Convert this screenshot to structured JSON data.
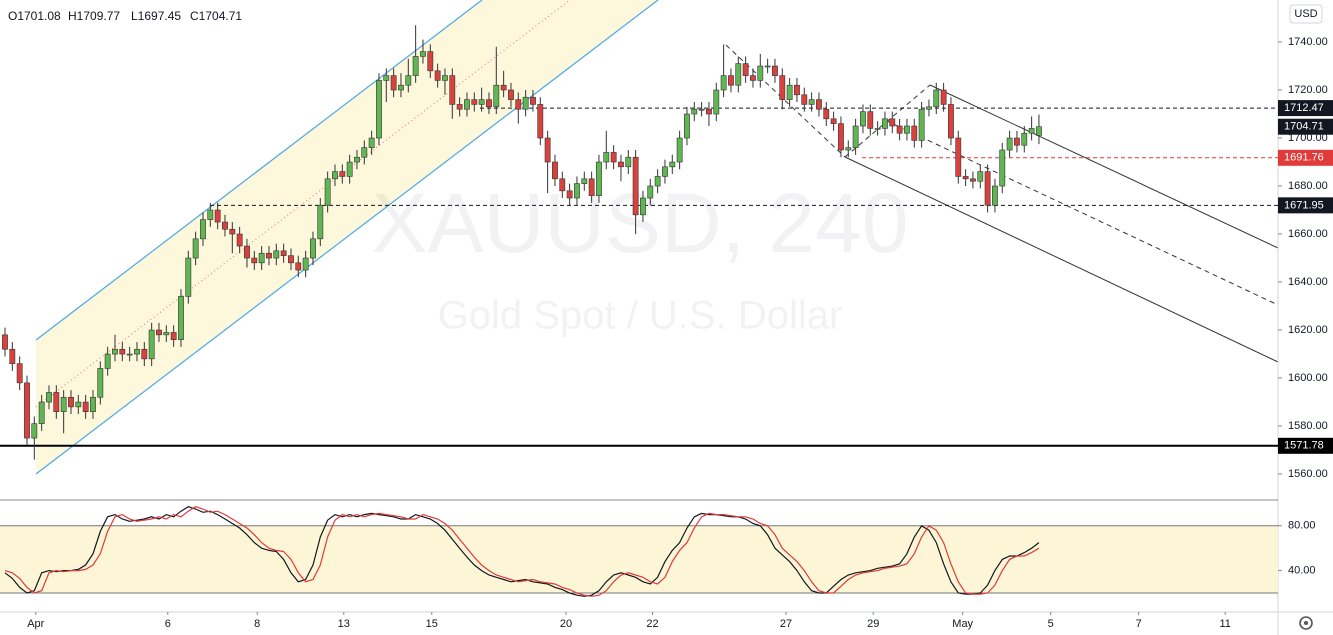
{
  "header": {
    "ohlc": [
      "O1701.08",
      "H1709.77",
      "L1697.45",
      "C1704.71"
    ]
  },
  "chart_data": [
    {
      "type": "candlestick",
      "watermark": "XAUUSD, 240",
      "watermark_subtitle": "Gold Spot / U.S. Dollar",
      "currency": "USD",
      "colors": {
        "up": "#5fb653",
        "down": "#d9413e"
      },
      "open": [
        1618,
        1612,
        1606,
        1598,
        1575,
        1581,
        1590,
        1594,
        1586,
        1592,
        1588,
        1590,
        1586,
        1592,
        1604,
        1610,
        1612,
        1610,
        1610,
        1612,
        1608,
        1620,
        1618,
        1619,
        1616,
        1634,
        1650,
        1658,
        1666,
        1670,
        1665,
        1662,
        1660,
        1655,
        1650,
        1648,
        1652,
        1650,
        1653,
        1651,
        1648,
        1645,
        1650,
        1658,
        1672,
        1683,
        1686,
        1684,
        1690,
        1692,
        1696,
        1700,
        1724,
        1726,
        1720,
        1722,
        1726,
        1734,
        1736,
        1728,
        1724,
        1726,
        1714,
        1712,
        1716,
        1714,
        1716,
        1713,
        1722,
        1720,
        1716,
        1712,
        1717,
        1714,
        1700,
        1690,
        1683,
        1678,
        1675,
        1681,
        1683,
        1676,
        1690,
        1694,
        1690,
        1688,
        1692,
        1668,
        1675,
        1680,
        1684,
        1688,
        1690,
        1700,
        1710,
        1712,
        1712,
        1710,
        1720,
        1726,
        1722,
        1731,
        1726,
        1724,
        1730,
        1730,
        1726,
        1716,
        1722,
        1718,
        1714,
        1716,
        1712,
        1708,
        1706,
        1695,
        1696,
        1705,
        1711,
        1704,
        1704,
        1708,
        1705,
        1702,
        1705,
        1699,
        1712,
        1713,
        1720,
        1714,
        1700,
        1684,
        1683,
        1682,
        1686,
        1672,
        1680,
        1695,
        1700,
        1697,
        1702,
        1701.08
      ],
      "high": [
        1621,
        1615,
        1609,
        1601,
        1584,
        1593,
        1597,
        1597,
        1595,
        1595,
        1593,
        1593,
        1595,
        1607,
        1613,
        1618,
        1615,
        1613,
        1615,
        1615,
        1623,
        1623,
        1622,
        1622,
        1637,
        1653,
        1661,
        1669,
        1673,
        1673,
        1668,
        1665,
        1663,
        1658,
        1653,
        1655,
        1655,
        1656,
        1656,
        1654,
        1651,
        1653,
        1661,
        1675,
        1686,
        1689,
        1689,
        1693,
        1695,
        1699,
        1703,
        1727,
        1729,
        1729,
        1727,
        1733,
        1747,
        1741,
        1739,
        1731,
        1729,
        1729,
        1717,
        1719,
        1719,
        1721,
        1719,
        1738,
        1728,
        1723,
        1719,
        1720,
        1720,
        1717,
        1703,
        1693,
        1686,
        1681,
        1684,
        1686,
        1686,
        1693,
        1703,
        1697,
        1693,
        1695,
        1695,
        1678,
        1683,
        1687,
        1691,
        1693,
        1703,
        1713,
        1715,
        1715,
        1715,
        1723,
        1739,
        1729,
        1734,
        1734,
        1729,
        1735,
        1733,
        1733,
        1729,
        1725,
        1725,
        1721,
        1719,
        1719,
        1715,
        1711,
        1709,
        1699,
        1708,
        1714,
        1714,
        1707,
        1711,
        1711,
        1708,
        1708,
        1708,
        1715,
        1716,
        1723,
        1723,
        1717,
        1703,
        1687,
        1686,
        1689,
        1689,
        1683,
        1698,
        1703,
        1703,
        1705,
        1709,
        1709.77
      ],
      "low": [
        1609,
        1603,
        1595,
        1572,
        1566,
        1578,
        1587,
        1583,
        1577,
        1585,
        1585,
        1583,
        1583,
        1589,
        1601,
        1607,
        1607,
        1607,
        1607,
        1605,
        1605,
        1615,
        1615,
        1613,
        1613,
        1631,
        1647,
        1655,
        1663,
        1662,
        1659,
        1652,
        1652,
        1646,
        1645,
        1645,
        1647,
        1647,
        1648,
        1645,
        1642,
        1642,
        1647,
        1655,
        1669,
        1680,
        1681,
        1681,
        1687,
        1689,
        1693,
        1697,
        1715,
        1717,
        1717,
        1719,
        1723,
        1731,
        1725,
        1721,
        1718,
        1708,
        1709,
        1709,
        1711,
        1711,
        1710,
        1710,
        1717,
        1713,
        1706,
        1709,
        1711,
        1697,
        1677,
        1680,
        1675,
        1672,
        1672,
        1678,
        1673,
        1673,
        1687,
        1687,
        1682,
        1685,
        1660,
        1665,
        1672,
        1677,
        1681,
        1685,
        1687,
        1697,
        1707,
        1709,
        1705,
        1707,
        1717,
        1719,
        1719,
        1723,
        1721,
        1721,
        1727,
        1723,
        1712,
        1713,
        1715,
        1711,
        1711,
        1709,
        1705,
        1703,
        1692,
        1692,
        1693,
        1702,
        1701,
        1701,
        1701,
        1702,
        1699,
        1699,
        1696,
        1696,
        1709,
        1710,
        1711,
        1697,
        1681,
        1680,
        1679,
        1679,
        1669,
        1669,
        1677,
        1692,
        1694,
        1694,
        1699,
        1697.45
      ],
      "close": [
        1612,
        1606,
        1598,
        1575,
        1581,
        1590,
        1594,
        1586,
        1592,
        1588,
        1590,
        1586,
        1592,
        1604,
        1610,
        1612,
        1610,
        1610,
        1612,
        1608,
        1620,
        1618,
        1619,
        1616,
        1634,
        1650,
        1658,
        1666,
        1670,
        1665,
        1662,
        1660,
        1655,
        1650,
        1648,
        1652,
        1650,
        1653,
        1651,
        1648,
        1645,
        1650,
        1658,
        1672,
        1683,
        1686,
        1684,
        1690,
        1692,
        1696,
        1700,
        1724,
        1726,
        1720,
        1722,
        1726,
        1734,
        1736,
        1728,
        1724,
        1726,
        1714,
        1712,
        1716,
        1714,
        1716,
        1713,
        1722,
        1720,
        1716,
        1712,
        1717,
        1714,
        1700,
        1690,
        1683,
        1678,
        1675,
        1681,
        1683,
        1676,
        1690,
        1694,
        1690,
        1688,
        1692,
        1668,
        1675,
        1680,
        1684,
        1688,
        1690,
        1700,
        1710,
        1712,
        1712,
        1710,
        1720,
        1726,
        1722,
        1731,
        1726,
        1724,
        1730,
        1730,
        1726,
        1716,
        1722,
        1718,
        1714,
        1716,
        1712,
        1708,
        1706,
        1695,
        1696,
        1705,
        1711,
        1704,
        1704,
        1708,
        1705,
        1702,
        1705,
        1699,
        1712,
        1713,
        1720,
        1714,
        1700,
        1684,
        1683,
        1682,
        1686,
        1672,
        1680,
        1695,
        1700,
        1697,
        1702,
        1704,
        1704.71
      ],
      "xlim": [
        -0.68,
        173.6
      ],
      "xticks": [
        {
          "value": 4.2,
          "label": "Apr"
        },
        {
          "value": 22.2,
          "label": "6"
        },
        {
          "value": 34.4,
          "label": "8"
        },
        {
          "value": 46.2,
          "label": "13"
        },
        {
          "value": 58.2,
          "label": "15"
        },
        {
          "value": 76.5,
          "label": "20"
        },
        {
          "value": 88.3,
          "label": "22"
        },
        {
          "value": 106.5,
          "label": "27"
        },
        {
          "value": 118.4,
          "label": "29"
        },
        {
          "value": 130.6,
          "label": "May"
        },
        {
          "value": 142.6,
          "label": "5"
        },
        {
          "value": 154.6,
          "label": "7"
        },
        {
          "value": 166.4,
          "label": "11"
        }
      ],
      "ylim": [
        1549.2,
        1757.5
      ],
      "yticks": [
        {
          "value": 1560,
          "label": "1560.00"
        },
        {
          "value": 1580,
          "label": "1580.00"
        },
        {
          "value": 1600,
          "label": "1600.00"
        },
        {
          "value": 1620,
          "label": "1620.00"
        },
        {
          "value": 1640,
          "label": "1640.00"
        },
        {
          "value": 1660,
          "label": "1660.00"
        },
        {
          "value": 1680,
          "label": "1680.00"
        },
        {
          "value": 1700,
          "label": "1700.00"
        },
        {
          "value": 1720,
          "label": "1720.00"
        },
        {
          "value": 1740,
          "label": "1740.00"
        }
      ],
      "price_levels": [
        {
          "value": 1712.47,
          "color": "#131722",
          "style": "dashed"
        },
        {
          "value": 1704.71,
          "color": "#131722",
          "style": "none"
        },
        {
          "value": 1691.76,
          "color": "#e03a3a",
          "style": "dashed"
        },
        {
          "value": 1671.95,
          "color": "#131722",
          "style": "dashed"
        },
        {
          "value": 1571.78,
          "color": "#000000",
          "style": "solid"
        }
      ]
    },
    {
      "type": "line",
      "ylim": [
        3,
        103
      ],
      "yticks": [
        {
          "value": 80,
          "label": "80.00"
        },
        {
          "value": 40,
          "label": "40.00"
        }
      ],
      "bands": [
        20,
        80
      ],
      "series": [
        {
          "color": "#131722",
          "values": [
            38,
            33,
            25,
            20,
            22,
            38,
            40,
            39,
            40,
            40,
            41,
            45,
            55,
            75,
            88,
            90,
            86,
            84,
            85,
            86,
            88,
            86,
            90,
            88,
            93,
            97,
            95,
            92,
            93,
            90,
            86,
            82,
            78,
            72,
            65,
            60,
            58,
            57,
            50,
            38,
            30,
            32,
            45,
            70,
            85,
            90,
            88,
            90,
            88,
            90,
            91,
            90,
            89,
            88,
            86,
            86,
            90,
            88,
            86,
            82,
            76,
            68,
            60,
            52,
            45,
            40,
            36,
            34,
            32,
            30,
            31,
            32,
            30,
            29,
            28,
            25,
            23,
            20,
            18,
            17,
            18,
            22,
            30,
            36,
            38,
            36,
            34,
            30,
            28,
            34,
            48,
            58,
            65,
            78,
            88,
            91,
            90,
            90,
            89,
            88,
            88,
            86,
            82,
            80,
            72,
            60,
            54,
            48,
            40,
            30,
            22,
            20,
            20,
            26,
            32,
            36,
            38,
            39,
            40,
            42,
            43,
            44,
            46,
            55,
            70,
            80,
            76,
            65,
            46,
            30,
            20,
            19,
            19,
            20,
            27,
            40,
            50,
            53,
            53,
            56,
            60,
            65
          ]
        },
        {
          "color": "#e03a3a",
          "values": [
            40,
            38,
            33,
            25,
            20,
            22,
            38,
            40,
            39,
            40,
            40,
            41,
            45,
            55,
            75,
            88,
            90,
            86,
            84,
            85,
            86,
            88,
            86,
            90,
            88,
            93,
            97,
            95,
            92,
            93,
            90,
            86,
            82,
            78,
            72,
            65,
            60,
            58,
            57,
            50,
            38,
            30,
            32,
            45,
            70,
            85,
            90,
            88,
            90,
            88,
            90,
            91,
            90,
            89,
            88,
            86,
            86,
            90,
            88,
            86,
            82,
            76,
            68,
            60,
            52,
            45,
            40,
            36,
            34,
            32,
            30,
            31,
            32,
            30,
            29,
            28,
            25,
            23,
            20,
            18,
            17,
            18,
            22,
            30,
            36,
            38,
            36,
            34,
            30,
            28,
            34,
            48,
            58,
            65,
            78,
            88,
            91,
            90,
            90,
            89,
            88,
            88,
            86,
            82,
            80,
            72,
            60,
            54,
            48,
            40,
            30,
            22,
            20,
            20,
            26,
            32,
            36,
            38,
            39,
            40,
            42,
            43,
            44,
            46,
            55,
            70,
            80,
            76,
            65,
            46,
            30,
            20,
            19,
            19,
            20,
            27,
            40,
            50,
            53,
            53,
            56,
            60
          ]
        }
      ]
    }
  ]
}
